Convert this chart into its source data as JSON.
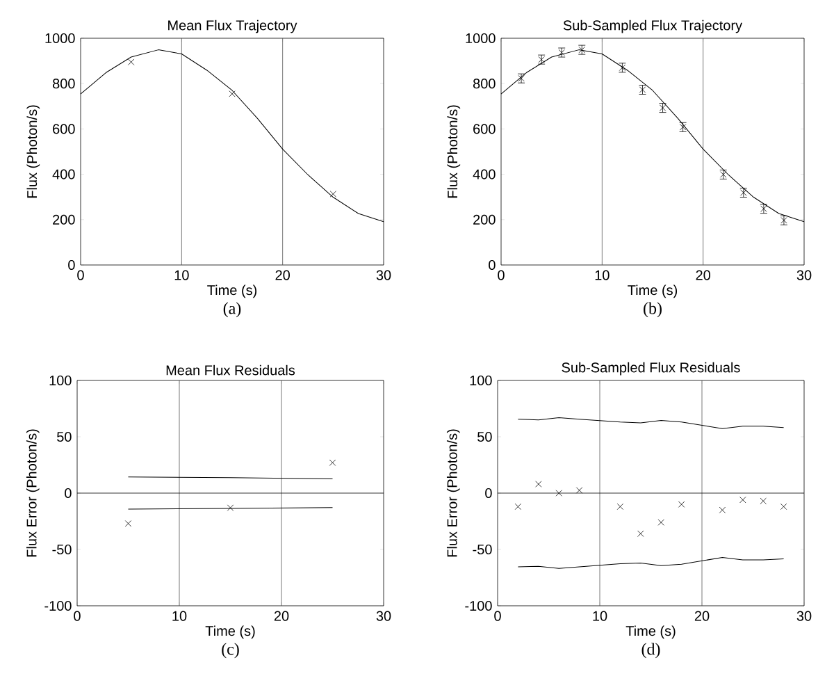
{
  "chart_data": [
    {
      "type": "scatter",
      "title": "Mean Flux Trajectory",
      "xlabel": "Time (s)",
      "ylabel": "Flux (Photon/s)",
      "annotations": [
        "(a)"
      ],
      "xlim": [
        0,
        30
      ],
      "ylim": [
        0,
        1000
      ],
      "xticks": [
        0,
        10,
        20,
        30
      ],
      "yticks": [
        0,
        200,
        400,
        600,
        800,
        1000
      ],
      "ref_lines": [
        {
          "axis": "x",
          "value": 10,
          "color": "#555555"
        },
        {
          "axis": "x",
          "value": 20,
          "color": "#555555"
        }
      ],
      "series": [
        {
          "type": "line",
          "color": "#000000",
          "x": [
            0,
            2.5,
            5,
            7.7,
            10,
            12.5,
            15,
            17.5,
            20,
            22.5,
            25,
            27.5,
            30
          ],
          "values": [
            754,
            848,
            917,
            949,
            931,
            859,
            770,
            647,
            511,
            398,
            299,
            227,
            191
          ]
        },
        {
          "marker": "cross",
          "color": "#000000",
          "x": [
            5,
            15,
            25
          ],
          "values": [
            895,
            755,
            313
          ]
        }
      ]
    },
    {
      "type": "scatter",
      "title": "Sub-Sampled Flux Trajectory",
      "xlabel": "Time (s)",
      "ylabel": "Flux (Photon/s)",
      "annotations": [
        "(b)"
      ],
      "xlim": [
        0,
        30
      ],
      "ylim": [
        0,
        1000
      ],
      "xticks": [
        0,
        10,
        20,
        30
      ],
      "yticks": [
        0,
        200,
        400,
        600,
        800,
        1000
      ],
      "ref_lines": [
        {
          "axis": "x",
          "value": 10,
          "color": "#555555"
        },
        {
          "axis": "x",
          "value": 20,
          "color": "#555555"
        }
      ],
      "series": [
        {
          "type": "line",
          "color": "#000000",
          "x": [
            0,
            2.5,
            5,
            7.7,
            10,
            12.5,
            15,
            17.5,
            20,
            22.5,
            25,
            27.5,
            30
          ],
          "values": [
            754,
            848,
            917,
            949,
            931,
            859,
            770,
            647,
            511,
            398,
            299,
            227,
            191
          ]
        },
        {
          "marker": "cross",
          "color": "#000000",
          "x": [
            2,
            4,
            6,
            8,
            12,
            14,
            16,
            18,
            22,
            24,
            26,
            28
          ],
          "values": [
            823,
            906,
            937,
            949,
            870,
            773,
            693,
            608,
            399,
            319,
            248,
            197
          ],
          "errors": [
            20,
            20,
            20,
            20,
            20,
            20,
            20,
            20,
            20,
            20,
            20,
            20
          ]
        }
      ]
    },
    {
      "type": "scatter",
      "title": "Mean Flux Residuals",
      "xlabel": "Time (s)",
      "ylabel": "Flux Error (Photon/s)",
      "annotations": [
        "(c)"
      ],
      "xlim": [
        0,
        30
      ],
      "ylim": [
        -100,
        100
      ],
      "xticks": [
        0,
        10,
        20,
        30
      ],
      "yticks": [
        -100,
        -50,
        0,
        50,
        100
      ],
      "ref_lines": [
        {
          "axis": "x",
          "value": 10,
          "color": "#555555"
        },
        {
          "axis": "x",
          "value": 20,
          "color": "#555555"
        },
        {
          "axis": "y",
          "value": 0,
          "color": "#000000"
        }
      ],
      "series": [
        {
          "type": "line",
          "color": "#000000",
          "x": [
            5,
            15,
            25
          ],
          "values": [
            14.4,
            13.8,
            12.7
          ]
        },
        {
          "type": "line",
          "color": "#000000",
          "x": [
            5,
            15,
            25
          ],
          "values": [
            -14.2,
            -13.6,
            -12.8
          ]
        },
        {
          "marker": "cross",
          "color": "#000000",
          "x": [
            5,
            15,
            25
          ],
          "values": [
            -27,
            -13,
            27
          ]
        }
      ]
    },
    {
      "type": "scatter",
      "title": "Sub-Sampled Flux Residuals",
      "xlabel": "Time (s)",
      "ylabel": "Flux Error (Photon/s)",
      "annotations": [
        "(d)"
      ],
      "xlim": [
        0,
        30
      ],
      "ylim": [
        -100,
        100
      ],
      "xticks": [
        0,
        10,
        20,
        30
      ],
      "yticks": [
        -100,
        -50,
        0,
        50,
        100
      ],
      "ref_lines": [
        {
          "axis": "x",
          "value": 10,
          "color": "#555555"
        },
        {
          "axis": "x",
          "value": 20,
          "color": "#555555"
        },
        {
          "axis": "y",
          "value": 0,
          "color": "#000000"
        }
      ],
      "series": [
        {
          "type": "line",
          "color": "#000000",
          "x": [
            2,
            4,
            6,
            8,
            12,
            14,
            16,
            18,
            22,
            24,
            26,
            28
          ],
          "values": [
            65.6,
            65,
            67,
            65.6,
            63.1,
            62.3,
            64.5,
            63.1,
            57.2,
            59.4,
            59.4,
            58.2
          ]
        },
        {
          "type": "line",
          "color": "#000000",
          "x": [
            2,
            4,
            6,
            8,
            12,
            14,
            16,
            18,
            22,
            24,
            26,
            28
          ],
          "values": [
            -65.4,
            -65,
            -66.8,
            -65.4,
            -62.7,
            -62.1,
            -64.3,
            -63.1,
            -57.1,
            -59.2,
            -59.2,
            -58.4
          ]
        },
        {
          "marker": "cross",
          "color": "#000000",
          "x": [
            2,
            4,
            6,
            8,
            12,
            14,
            16,
            18,
            22,
            24,
            26,
            28
          ],
          "values": [
            -12,
            8,
            0,
            2.5,
            -12,
            -36,
            -26,
            -10,
            -15,
            -6,
            -7,
            -12
          ]
        }
      ]
    }
  ]
}
